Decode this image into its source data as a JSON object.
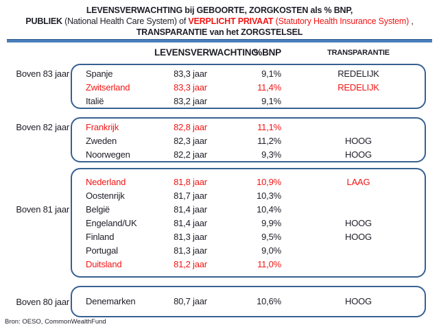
{
  "title": {
    "line1": "LEVENSVERWACHTING bij GEBOORTE, ZORGKOSTEN als % BNP,",
    "line2": {
      "publiek": "PUBLIEK",
      "national": " (National Health Care System) of ",
      "verplicht": "VERPLICHT PRIVAAT",
      "statutory": " (Statutory Health Insurance System)",
      "comma": " ,"
    },
    "line3": "TRANSPARANTIE van het ZORGSTELSEL"
  },
  "headers": {
    "levensverwachting": "LEVENSVERWACHTING",
    "bnp": "%BNP",
    "transparantie": "TRANSPARANTIE"
  },
  "groups": [
    {
      "label": "Boven 83 jaar",
      "rows": [
        {
          "country": "Spanje",
          "years": "83,3 jaar",
          "bnp": "9,1%",
          "transparantie": "REDELIJK",
          "color": "black"
        },
        {
          "country": "Zwitserland",
          "years": "83,3 jaar",
          "bnp": "11,4%",
          "transparantie": "REDELIJK",
          "color": "red"
        },
        {
          "country": "Italië",
          "years": "83,2 jaar",
          "bnp": "9,1%",
          "transparantie": "",
          "color": "black"
        }
      ]
    },
    {
      "label": "Boven 82 jaar",
      "rows": [
        {
          "country": "Frankrijk",
          "years": "82,8 jaar",
          "bnp": "11,1%",
          "transparantie": "",
          "color": "red"
        },
        {
          "country": "Zweden",
          "years": "82,3 jaar",
          "bnp": "11,2%",
          "transparantie": "HOOG",
          "color": "black"
        },
        {
          "country": "Noorwegen",
          "years": "82,2 jaar",
          "bnp": "9,3%",
          "transparantie": "HOOG",
          "color": "black"
        }
      ]
    },
    {
      "label": "Boven 81 jaar",
      "rows": [
        {
          "country": "Nederland",
          "years": "81,8 jaar",
          "bnp": "10,9%",
          "transparantie": "LAAG",
          "color": "red"
        },
        {
          "country": "Oostenrijk",
          "years": "81,7 jaar",
          "bnp": "10,3%",
          "transparantie": "",
          "color": "black"
        },
        {
          "country": "België",
          "years": "81,4 jaar",
          "bnp": "10,4%",
          "transparantie": "",
          "color": "black"
        },
        {
          "country": "Engeland/UK",
          "years": "81,4 jaar",
          "bnp": "9,9%",
          "transparantie": "HOOG",
          "color": "black"
        },
        {
          "country": "Finland",
          "years": "81,3 jaar",
          "bnp": "9,5%",
          "transparantie": "HOOG",
          "color": "black"
        },
        {
          "country": "Portugal",
          "years": "81,3 jaar",
          "bnp": "9,0%",
          "transparantie": "",
          "color": "black"
        },
        {
          "country": "Duitsland",
          "years": "81,2 jaar",
          "bnp": "11,0%",
          "transparantie": "",
          "color": "red"
        }
      ]
    },
    {
      "label": "Boven 80 jaar",
      "rows": [
        {
          "country": "Denemarken",
          "years": "80,7 jaar",
          "bnp": "10,6%",
          "transparantie": "HOOG",
          "color": "black"
        }
      ]
    }
  ],
  "footer": {
    "source": "Bron: OESO, CommonWealthFund"
  },
  "colors": {
    "red": "#f21414",
    "border": "#365f91",
    "divider": "#4a7ebb",
    "ink": "#1d1d27"
  }
}
